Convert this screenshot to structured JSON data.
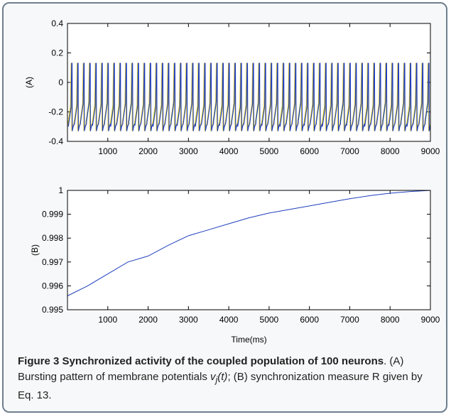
{
  "chart_data": [
    {
      "type": "line",
      "ylabel": "(A)",
      "xlabel": "",
      "xlim": [
        0,
        9000
      ],
      "ylim": [
        -0.4,
        0.4
      ],
      "xticks": [
        "1000",
        "2000",
        "3000",
        "4000",
        "5000",
        "6000",
        "7000",
        "8000",
        "9000"
      ],
      "yticks": [
        "0.4",
        "0.2",
        "0",
        "-0.2",
        "-0.4"
      ],
      "series_colors": [
        "#1a7a1a",
        "#d8c020",
        "#1f3fbf"
      ],
      "bursting": {
        "n_spikes": 60,
        "spike_peak": 0.13,
        "spike_trough": -0.33,
        "plateau": -0.15,
        "recovery_level": -0.28,
        "spike_interval_ms": 150
      }
    },
    {
      "type": "line",
      "ylabel": "(B)",
      "xlabel": "Time(ms)",
      "xlim": [
        0,
        9000
      ],
      "ylim": [
        0.995,
        1
      ],
      "xticks": [
        "1000",
        "2000",
        "3000",
        "4000",
        "5000",
        "6000",
        "7000",
        "8000",
        "9000"
      ],
      "yticks": [
        "1",
        "0.999",
        "0.998",
        "0.997",
        "0.996",
        "0.995"
      ],
      "series_color": "#1f3fbf",
      "x": [
        0,
        500,
        1000,
        1500,
        2000,
        2500,
        3000,
        3500,
        4000,
        4500,
        5000,
        5500,
        6000,
        6500,
        7000,
        7500,
        8000,
        8500,
        9000
      ],
      "y": [
        0.99558,
        0.996,
        0.9965,
        0.997,
        0.99725,
        0.9977,
        0.9981,
        0.99835,
        0.9986,
        0.99885,
        0.99905,
        0.9992,
        0.99935,
        0.9995,
        0.99965,
        0.99978,
        0.99988,
        0.99995,
        1.0
      ]
    }
  ],
  "caption": {
    "figure_label": "Figure 3",
    "title": " Synchronized activity of the coupled population of 100 neurons",
    "text_a": ". (A) Bursting pattern of membrane potentials ",
    "var": "v",
    "sub": "j",
    "var_tail": "(t)",
    "text_b": "; (B) synchronization measure R given by Eq. 13."
  }
}
